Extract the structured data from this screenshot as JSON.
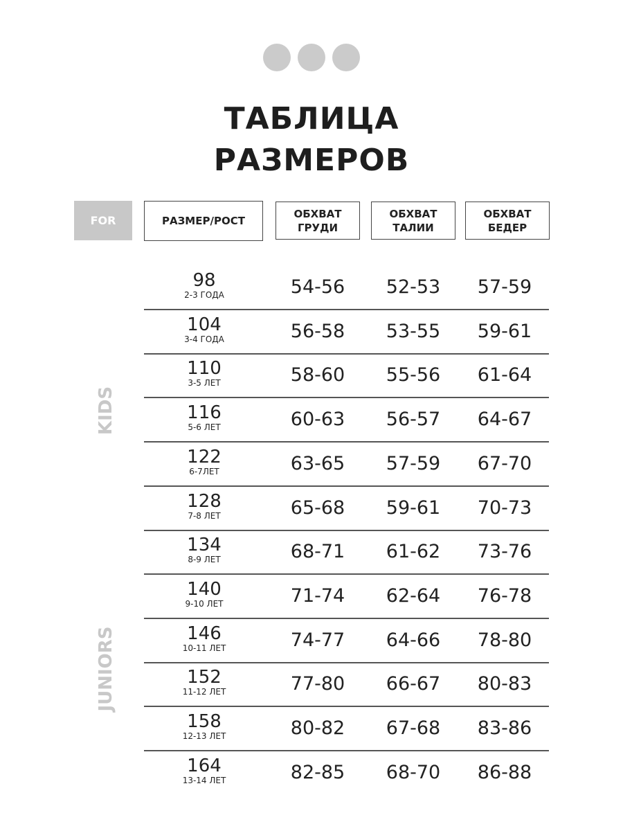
{
  "title": {
    "line1": "ТАБЛИЦА",
    "line2": "РАЗМЕРОВ"
  },
  "header": {
    "for": "FOR",
    "size": "РАЗМЕР/РОСТ",
    "chest": [
      "ОБХВАТ",
      "ГРУДИ"
    ],
    "waist": [
      "ОБХВАТ",
      "ТАЛИИ"
    ],
    "hips": [
      "ОБХВАТ",
      "БЕДЕР"
    ]
  },
  "groups": {
    "kids": "KIDS",
    "juniors": "JUNIORS"
  },
  "rows": [
    {
      "size": "98",
      "age": "2-3 ГОДА",
      "chest": "54-56",
      "waist": "52-53",
      "hips": "57-59"
    },
    {
      "size": "104",
      "age": "3-4 ГОДА",
      "chest": "56-58",
      "waist": "53-55",
      "hips": "59-61"
    },
    {
      "size": "110",
      "age": "3-5 ЛЕТ",
      "chest": "58-60",
      "waist": "55-56",
      "hips": "61-64"
    },
    {
      "size": "116",
      "age": "5-6 ЛЕТ",
      "chest": "60-63",
      "waist": "56-57",
      "hips": "64-67"
    },
    {
      "size": "122",
      "age": "6-7ЛЕТ",
      "chest": "63-65",
      "waist": "57-59",
      "hips": "67-70"
    },
    {
      "size": "128",
      "age": "7-8 ЛЕТ",
      "chest": "65-68",
      "waist": "59-61",
      "hips": "70-73"
    },
    {
      "size": "134",
      "age": "8-9 ЛЕТ",
      "chest": "68-71",
      "waist": "61-62",
      "hips": "73-76"
    },
    {
      "size": "140",
      "age": "9-10 ЛЕТ",
      "chest": "71-74",
      "waist": "62-64",
      "hips": "76-78"
    },
    {
      "size": "146",
      "age": "10-11 ЛЕТ",
      "chest": "74-77",
      "waist": "64-66",
      "hips": "78-80"
    },
    {
      "size": "152",
      "age": "11-12 ЛЕТ",
      "chest": "77-80",
      "waist": "66-67",
      "hips": "80-83"
    },
    {
      "size": "158",
      "age": "12-13 ЛЕТ",
      "chest": "80-82",
      "waist": "67-68",
      "hips": "83-86"
    },
    {
      "size": "164",
      "age": "13-14 ЛЕТ",
      "chest": "82-85",
      "waist": "68-70",
      "hips": "86-88"
    }
  ]
}
